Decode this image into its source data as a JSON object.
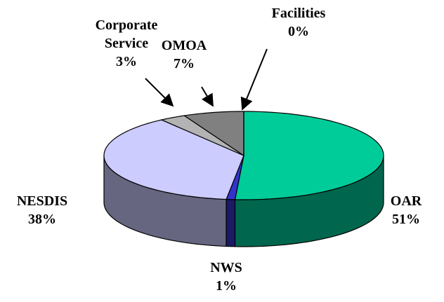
{
  "chart_data": {
    "type": "pie",
    "categories": [
      "OAR",
      "NWS",
      "NESDIS",
      "Corporate Service",
      "OMOA",
      "Facilities"
    ],
    "values": [
      51,
      1,
      38,
      3,
      7,
      0
    ],
    "value_labels": [
      "51%",
      "1%",
      "38%",
      "3%",
      "7%",
      "0%"
    ],
    "colors": [
      "#00cc99",
      "#3333cc",
      "#ccccff",
      "#b3b3b3",
      "#808080",
      "#000000"
    ]
  }
}
